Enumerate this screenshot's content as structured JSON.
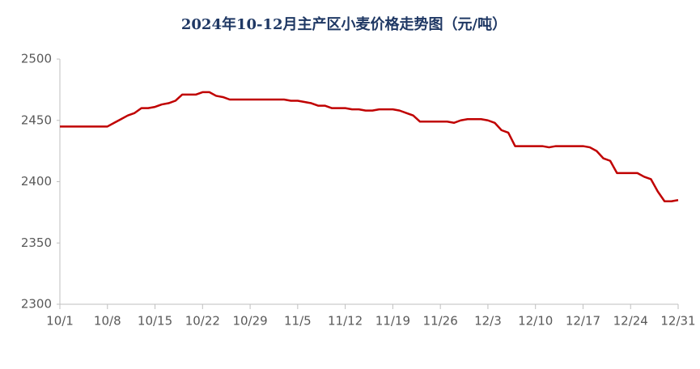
{
  "chart_data": {
    "type": "line",
    "title": "2024年10-12月主产区小麦价格走势图（元/吨）",
    "categories": [
      "10/1",
      null,
      null,
      null,
      null,
      null,
      null,
      "10/8",
      null,
      null,
      null,
      null,
      null,
      null,
      "10/15",
      null,
      null,
      null,
      null,
      null,
      null,
      "10/22",
      null,
      null,
      null,
      null,
      null,
      null,
      "10/29",
      null,
      null,
      null,
      null,
      null,
      null,
      "11/5",
      null,
      null,
      null,
      null,
      null,
      null,
      "11/12",
      null,
      null,
      null,
      null,
      null,
      null,
      "11/19",
      null,
      null,
      null,
      null,
      null,
      null,
      "11/26",
      null,
      null,
      null,
      null,
      null,
      null,
      "12/3",
      null,
      null,
      null,
      null,
      null,
      null,
      "12/10",
      null,
      null,
      null,
      null,
      null,
      null,
      "12/17",
      null,
      null,
      null,
      null,
      null,
      null,
      "12/24",
      null,
      null,
      null,
      null,
      null,
      null,
      "12/31"
    ],
    "series": [
      {
        "name": "小麦价格",
        "color": "#c00000",
        "values": [
          2445,
          2445,
          2445,
          2445,
          2445,
          2445,
          2445,
          2445,
          2448,
          2451,
          2454,
          2456,
          2460,
          2460,
          2461,
          2463,
          2464,
          2466,
          2471,
          2471,
          2471,
          2473,
          2473,
          2470,
          2469,
          2467,
          2467,
          2467,
          2467,
          2467,
          2467,
          2467,
          2467,
          2467,
          2466,
          2466,
          2465,
          2464,
          2462,
          2462,
          2460,
          2460,
          2460,
          2459,
          2459,
          2458,
          2458,
          2459,
          2459,
          2459,
          2458,
          2456,
          2454,
          2449,
          2449,
          2449,
          2449,
          2449,
          2448,
          2450,
          2451,
          2451,
          2451,
          2450,
          2448,
          2442,
          2440,
          2429,
          2429,
          2429,
          2429,
          2429,
          2428,
          2429,
          2429,
          2429,
          2429,
          2429,
          2428,
          2425,
          2419,
          2417,
          2407,
          2407,
          2407,
          2407,
          2404,
          2402,
          2392,
          2384,
          2384,
          2385
        ]
      }
    ],
    "ylim": [
      2300,
      2500
    ],
    "yticks": [
      2300,
      2350,
      2400,
      2450,
      2500
    ],
    "grid": false
  }
}
